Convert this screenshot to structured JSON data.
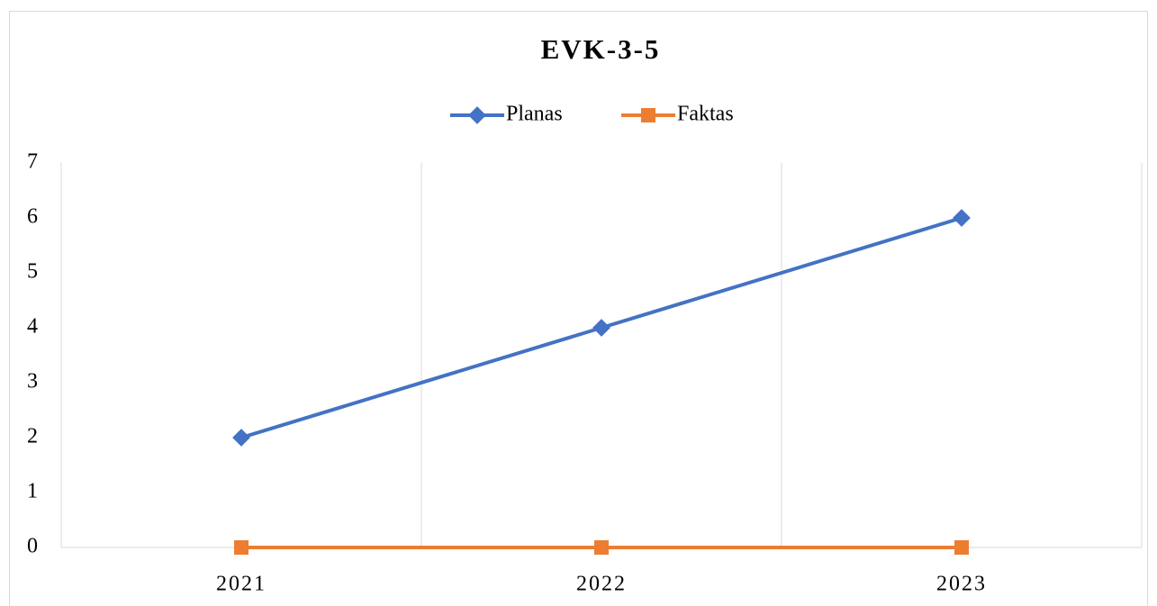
{
  "chart_data": {
    "type": "line",
    "title": "EVK-3-5",
    "categories": [
      "2021",
      "2022",
      "2023"
    ],
    "series": [
      {
        "name": "Planas",
        "color": "#4472c4",
        "values": [
          2,
          4,
          6
        ]
      },
      {
        "name": "Faktas",
        "color": "#ed7d31",
        "values": [
          0,
          0,
          0
        ]
      }
    ],
    "ylim": [
      0,
      7
    ],
    "yticks": [
      0,
      1,
      2,
      3,
      4,
      5,
      6,
      7
    ],
    "legend": "top"
  }
}
